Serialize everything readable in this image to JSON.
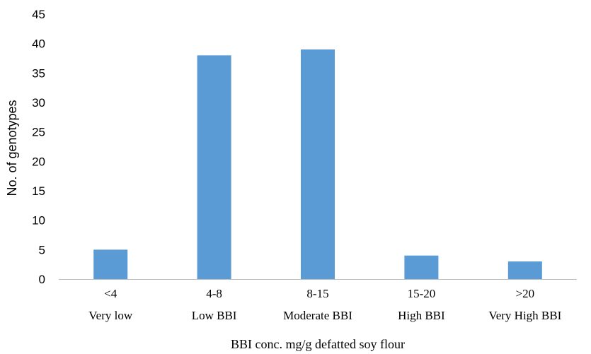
{
  "chart_data": {
    "type": "bar",
    "categories": [
      [
        "<4",
        "Very low"
      ],
      [
        "4-8",
        "Low BBI"
      ],
      [
        "8-15",
        "Moderate BBI"
      ],
      [
        "15-20",
        "High BBI"
      ],
      [
        ">20",
        "Very High BBI"
      ]
    ],
    "values": [
      5,
      38,
      39,
      4,
      3
    ],
    "xlabel": "BBI conc. mg/g defatted soy flour",
    "ylabel": "No. of genotypes",
    "ylim": [
      0,
      45
    ],
    "yticks": [
      0,
      5,
      10,
      15,
      20,
      25,
      30,
      35,
      40,
      45
    ],
    "grid": false,
    "bar_color": "#5b9bd5"
  }
}
